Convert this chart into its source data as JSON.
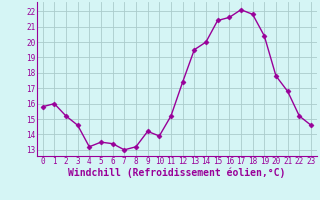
{
  "x": [
    0,
    1,
    2,
    3,
    4,
    5,
    6,
    7,
    8,
    9,
    10,
    11,
    12,
    13,
    14,
    15,
    16,
    17,
    18,
    19,
    20,
    21,
    22,
    23
  ],
  "y": [
    15.8,
    16.0,
    15.2,
    14.6,
    13.2,
    13.5,
    13.4,
    13.0,
    13.2,
    14.2,
    13.9,
    15.2,
    17.4,
    19.5,
    20.0,
    21.4,
    21.6,
    22.1,
    21.8,
    20.4,
    17.8,
    16.8,
    15.2,
    14.6
  ],
  "line_color": "#990099",
  "marker": "D",
  "marker_size": 2.5,
  "bg_color": "#d5f5f5",
  "grid_color": "#aacccc",
  "xlabel": "Windchill (Refroidissement éolien,°C)",
  "xlabel_color": "#990099",
  "ylabel_ticks": [
    13,
    14,
    15,
    16,
    17,
    18,
    19,
    20,
    21,
    22
  ],
  "xtick_labels": [
    "0",
    "1",
    "2",
    "3",
    "4",
    "5",
    "6",
    "7",
    "8",
    "9",
    "10",
    "11",
    "12",
    "13",
    "14",
    "15",
    "16",
    "17",
    "18",
    "19",
    "20",
    "21",
    "22",
    "23"
  ],
  "ylim": [
    12.6,
    22.6
  ],
  "xlim": [
    -0.5,
    23.5
  ],
  "tick_color": "#990099",
  "tick_fontsize": 5.5,
  "xlabel_fontsize": 7.0,
  "linewidth": 1.0,
  "spine_color": "#888888"
}
